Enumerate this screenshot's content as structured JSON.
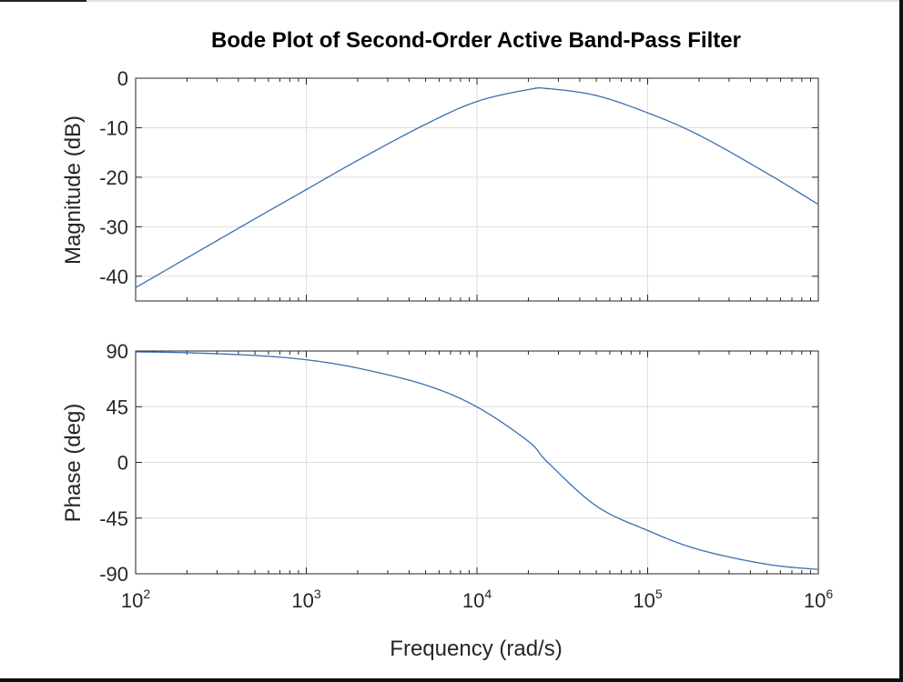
{
  "chart_data": [
    {
      "type": "line",
      "title": "Bode Plot of Second-Order Active Band-Pass Filter",
      "xlabel": "Frequency (rad/s)",
      "ylabel": "Magnitude (dB)",
      "xscale": "log",
      "xlim": [
        100,
        1000000
      ],
      "ylim": [
        -45,
        0
      ],
      "yticks": [
        0,
        -10,
        -20,
        -30,
        -40
      ],
      "ytick_labels": [
        "0",
        "-10",
        "-20",
        "-30",
        "-40"
      ],
      "grid": true,
      "line_color": "#3a6fb0",
      "x": [
        100,
        200,
        500,
        1000,
        2000,
        5000,
        10000,
        20000,
        26000,
        50000,
        100000,
        200000,
        500000,
        1000000
      ],
      "series": [
        {
          "values": [
            -42.3,
            -36.3,
            -28.4,
            -22.5,
            -16.6,
            -9.3,
            -4.7,
            -2.3,
            -2.1,
            -3.5,
            -7.0,
            -11.5,
            -19.2,
            -25.5
          ]
        }
      ]
    },
    {
      "type": "line",
      "xlabel": "Frequency (rad/s)",
      "ylabel": "Phase (deg)",
      "xscale": "log",
      "xlim": [
        100,
        1000000
      ],
      "ylim": [
        -90,
        90
      ],
      "yticks": [
        90,
        45,
        0,
        -45,
        -90
      ],
      "ytick_labels": [
        "90",
        "45",
        "0",
        "-45",
        "-90"
      ],
      "xticks": [
        100,
        1000,
        10000,
        100000,
        1000000
      ],
      "xtick_labels": [
        {
          "base": "10",
          "exp": "2"
        },
        {
          "base": "10",
          "exp": "3"
        },
        {
          "base": "10",
          "exp": "4"
        },
        {
          "base": "10",
          "exp": "5"
        },
        {
          "base": "10",
          "exp": "6"
        }
      ],
      "grid": true,
      "line_color": "#3a6fb0",
      "x": [
        100,
        200,
        500,
        1000,
        2000,
        5000,
        10000,
        20000,
        26000,
        50000,
        100000,
        200000,
        500000,
        1000000
      ],
      "series": [
        {
          "values": [
            89.3,
            88.6,
            86.4,
            82.9,
            76.2,
            62.5,
            44.8,
            17.0,
            0.0,
            -35.2,
            -55.0,
            -70.5,
            -82.3,
            -86.5
          ]
        }
      ]
    }
  ]
}
